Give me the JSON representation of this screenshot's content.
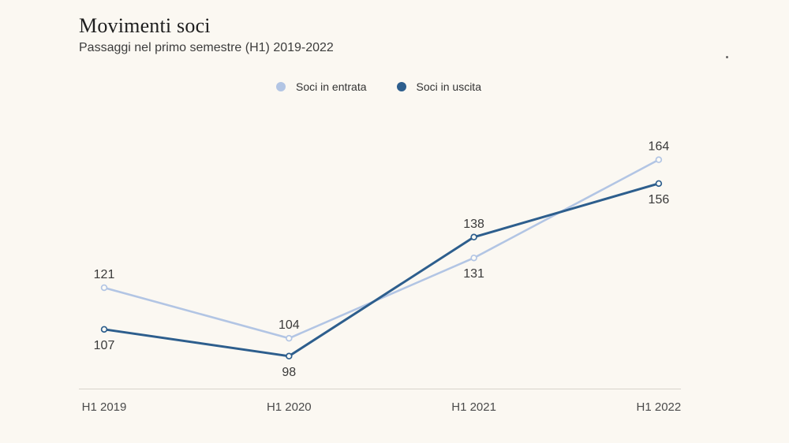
{
  "page": {
    "background": "#fbf8f2"
  },
  "header": {
    "title": "Movimenti soci",
    "subtitle": "Passaggi nel primo semestre (H1) 2019-2022"
  },
  "chart_data": {
    "type": "line",
    "title": "Movimenti soci",
    "subtitle": "Passaggi nel primo semestre (H1) 2019-2022",
    "categories": [
      "H1 2019",
      "H1 2020",
      "H1 2021",
      "H1 2022"
    ],
    "series": [
      {
        "name": "Soci in entrata",
        "color": "#b2c5e4",
        "values": [
          121,
          104,
          131,
          164
        ]
      },
      {
        "name": "Soci in uscita",
        "color": "#2d5e8d",
        "values": [
          107,
          98,
          138,
          156
        ]
      }
    ],
    "ylim": [
      90,
      170
    ],
    "grid": false,
    "legend_position": "top-center",
    "data_labels": true,
    "marker_fill": "#fdfbf6",
    "axis_color": "#d8d4cb",
    "value_label_color": "#3a3a3a",
    "tick_label_color": "#4a4a4a"
  }
}
